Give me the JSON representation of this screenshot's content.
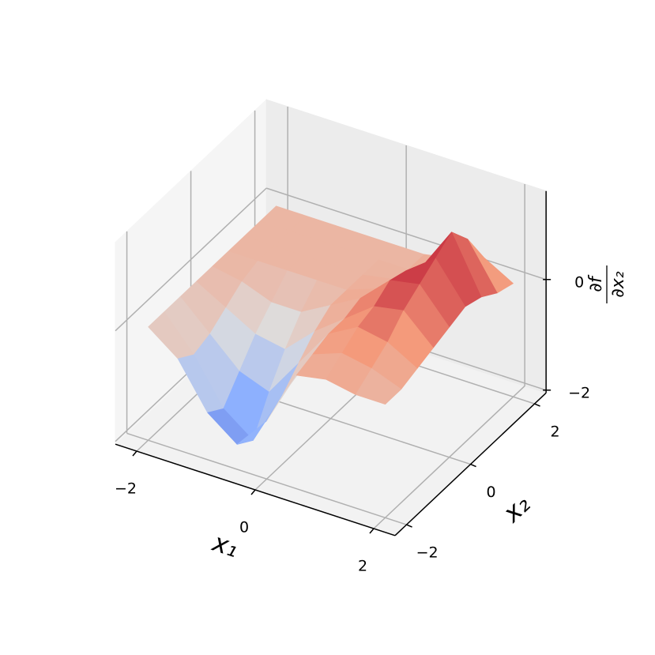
{
  "chart_data": {
    "type": "surface",
    "x": [
      -2,
      -1.5,
      -1,
      -0.5,
      0,
      0.5,
      1,
      1.5,
      2
    ],
    "y": [
      -2,
      -1.5,
      -1,
      -0.5,
      0,
      0.5,
      1,
      1.5,
      2
    ],
    "z": [
      [
        0,
        -0.4,
        -1.2,
        -1.6,
        -1.0,
        0,
        0.1,
        0,
        0
      ],
      [
        0,
        -0.6,
        -1.4,
        -1.8,
        -0.8,
        0.1,
        0.3,
        0.2,
        0
      ],
      [
        0,
        -0.5,
        -1.0,
        -1.2,
        -0.5,
        0.2,
        0.5,
        0.4,
        0.1
      ],
      [
        0,
        -0.3,
        -0.6,
        -0.7,
        -0.2,
        0.2,
        0.6,
        0.7,
        0.2
      ],
      [
        0,
        -0.1,
        -0.3,
        -0.3,
        0,
        0.3,
        0.8,
        0.9,
        0.3
      ],
      [
        0,
        0,
        0,
        0,
        0,
        0.2,
        0.7,
        1.1,
        0.4
      ],
      [
        0,
        0,
        0,
        0,
        0,
        0.1,
        0.5,
        1.3,
        0.3
      ],
      [
        0,
        0,
        0,
        0,
        0,
        0,
        0.3,
        0.9,
        0.1
      ],
      [
        0,
        0,
        0,
        0,
        0,
        0,
        0.1,
        0.3,
        0
      ]
    ],
    "colormap": "coolwarm",
    "clim": [
      -2.2,
      1.2
    ],
    "xlim": [
      -2.36,
      2.36
    ],
    "ylim": [
      -2.36,
      2.36
    ],
    "zlim": [
      -2.05,
      1.6
    ],
    "xticks": [
      {
        "value": -2,
        "label": "−2"
      },
      0,
      2
    ],
    "yticks": [
      {
        "value": -2,
        "label": "−2"
      },
      0,
      2
    ],
    "zticks": [
      {
        "value": -2,
        "label": "−2"
      },
      0
    ],
    "xlabel": "x₁",
    "ylabel": "x₂",
    "zlabel": {
      "numerator": "∂f",
      "denominator": "∂x₂"
    },
    "grid": true
  }
}
